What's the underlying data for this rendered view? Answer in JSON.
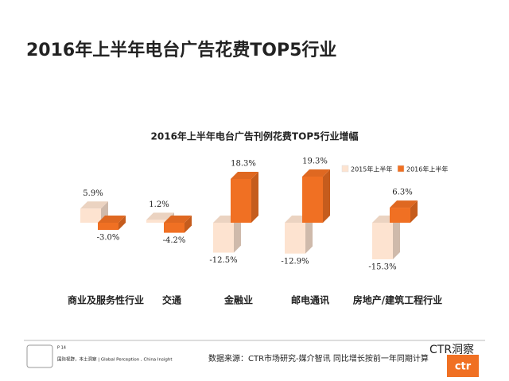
{
  "slide": {
    "title": "2016年上半年电台广告花费TOP5行业",
    "page": "P 14",
    "slogan": "国际视野，本土洞察 | Global Perception , China Insight",
    "source": "数据来源：CTR市场研究-媒介智讯  同比增长按前一年同期计算",
    "watermark": "CTR洞察",
    "logo": "ctr"
  },
  "chart_data": {
    "type": "bar3d",
    "title": "2016年上半年电台广告刊例花费TOP5行业增幅",
    "categories": [
      "商业及服务性行业",
      "交通",
      "金融业",
      "邮电通讯",
      "房地产/建筑工程行业"
    ],
    "series": [
      {
        "name": "2015年上半年",
        "color": "#fde3d0",
        "values": [
          5.9,
          1.2,
          -12.5,
          -12.9,
          -15.3
        ],
        "value_labels": [
          "5.9%",
          "1.2%",
          "-12.5%",
          "-12.9%",
          "-15.3%"
        ]
      },
      {
        "name": "2016年上半年",
        "color": "#f07023",
        "values": [
          -3.0,
          -4.2,
          18.3,
          19.3,
          6.3
        ],
        "value_labels": [
          "-3.0%",
          "-4.2%",
          "18.3%",
          "19.3%",
          "6.3%"
        ]
      }
    ],
    "legend": "top-right"
  }
}
